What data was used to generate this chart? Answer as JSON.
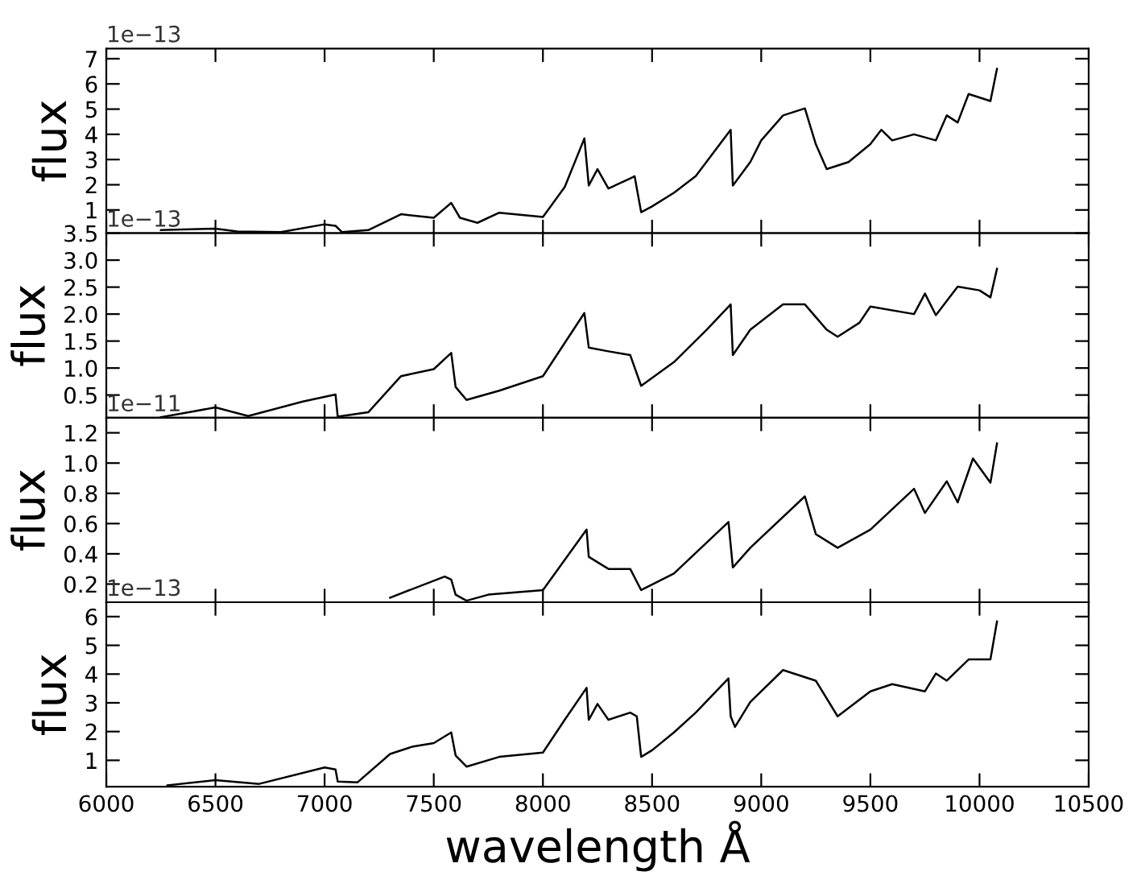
{
  "chart_data": [
    {
      "type": "line",
      "ylabel": "flux",
      "annotations": [
        "1e−13"
      ],
      "tick_labels": "y",
      "grid": false,
      "xlim": [
        6000,
        10500
      ],
      "xticks": [
        6000,
        6500,
        7000,
        7500,
        8000,
        8500,
        9000,
        9500,
        10000,
        10500
      ],
      "ylim": [
        0.08,
        7.4
      ],
      "yticks": [
        1,
        2,
        3,
        4,
        5,
        6,
        7
      ],
      "series": [
        {
          "color": "#000000",
          "x": [
            6250,
            6500,
            6600,
            6800,
            7000,
            7050,
            7080,
            7200,
            7350,
            7500,
            7580,
            7620,
            7700,
            7800,
            8000,
            8100,
            8190,
            8210,
            8250,
            8300,
            8400,
            8420,
            8450,
            8500,
            8600,
            8700,
            8860,
            8870,
            8950,
            9000,
            9100,
            9200,
            9250,
            9300,
            9400,
            9500,
            9550,
            9600,
            9700,
            9800,
            9850,
            9900,
            9950,
            10050,
            10080
          ],
          "values": [
            0.2,
            0.26,
            0.15,
            0.12,
            0.43,
            0.37,
            0.12,
            0.2,
            0.83,
            0.69,
            1.28,
            0.69,
            0.49,
            0.89,
            0.72,
            1.91,
            3.84,
            1.97,
            2.62,
            1.85,
            2.25,
            2.34,
            0.91,
            1.14,
            1.68,
            2.34,
            4.18,
            1.97,
            2.9,
            3.76,
            4.75,
            5.03,
            3.61,
            2.62,
            2.9,
            3.61,
            4.18,
            3.76,
            4.0,
            3.76,
            4.75,
            4.47,
            5.6,
            5.32,
            6.6
          ]
        }
      ]
    },
    {
      "type": "line",
      "ylabel": "flux",
      "annotations": [
        "1e−13"
      ],
      "tick_labels": "y",
      "grid": false,
      "xlim": [
        6000,
        10500
      ],
      "xticks": [
        6000,
        6500,
        7000,
        7500,
        8000,
        8500,
        9000,
        9500,
        10000,
        10500
      ],
      "ylim": [
        0.08,
        3.5
      ],
      "yticks": [
        0.5,
        {
          "value": 1,
          "label": "1.0"
        },
        1.5,
        {
          "value": 2,
          "label": "2.0"
        },
        2.5,
        {
          "value": 3,
          "label": "3.0"
        },
        3.5
      ],
      "series": [
        {
          "color": "#000000",
          "x": [
            6250,
            6500,
            6650,
            6900,
            7050,
            7060,
            7200,
            7350,
            7500,
            7580,
            7600,
            7650,
            7800,
            8000,
            8190,
            8210,
            8300,
            8400,
            8450,
            8600,
            8750,
            8860,
            8870,
            8950,
            9100,
            9200,
            9300,
            9350,
            9450,
            9500,
            9700,
            9750,
            9800,
            9900,
            10000,
            10050,
            10080
          ],
          "values": [
            0.09,
            0.27,
            0.11,
            0.38,
            0.51,
            0.1,
            0.18,
            0.85,
            0.98,
            1.28,
            0.65,
            0.41,
            0.58,
            0.85,
            2.02,
            1.38,
            1.31,
            1.24,
            0.67,
            1.11,
            1.71,
            2.18,
            1.24,
            1.71,
            2.18,
            2.18,
            1.71,
            1.58,
            1.84,
            2.14,
            2.0,
            2.38,
            1.98,
            2.51,
            2.44,
            2.31,
            2.84
          ]
        }
      ]
    },
    {
      "type": "line",
      "ylabel": "flux",
      "annotations": [
        "1e−11"
      ],
      "tick_labels": "y",
      "grid": false,
      "xlim": [
        6000,
        10500
      ],
      "xticks": [
        6000,
        6500,
        7000,
        7500,
        8000,
        8500,
        9000,
        9500,
        10000,
        10500
      ],
      "ylim": [
        0.08,
        1.3
      ],
      "yticks": [
        0.2,
        0.4,
        0.6,
        0.8,
        {
          "value": 1,
          "label": "1.0"
        },
        1.2
      ],
      "series": [
        {
          "color": "#000000",
          "x": [
            7300,
            7550,
            7580,
            7600,
            7650,
            7750,
            8000,
            8200,
            8210,
            8300,
            8400,
            8450,
            8600,
            8850,
            8870,
            8950,
            9200,
            9250,
            9350,
            9500,
            9700,
            9750,
            9850,
            9900,
            9970,
            10050,
            10080
          ],
          "values": [
            0.11,
            0.25,
            0.23,
            0.13,
            0.09,
            0.13,
            0.16,
            0.56,
            0.38,
            0.3,
            0.3,
            0.16,
            0.27,
            0.61,
            0.31,
            0.44,
            0.78,
            0.53,
            0.44,
            0.56,
            0.83,
            0.67,
            0.88,
            0.74,
            1.03,
            0.87,
            1.13
          ]
        }
      ]
    },
    {
      "type": "line",
      "ylabel": "flux",
      "xlabel": "wavelength Å",
      "annotations": [
        "1e−13"
      ],
      "grid": false,
      "xlim": [
        6000,
        10500
      ],
      "xticks": [
        6000,
        6500,
        7000,
        7500,
        8000,
        8500,
        9000,
        9500,
        10000,
        10500
      ],
      "ylim": [
        0.08,
        6.5
      ],
      "yticks": [
        1,
        2,
        3,
        4,
        5,
        6
      ],
      "series": [
        {
          "color": "#000000",
          "x": [
            6280,
            6500,
            6700,
            7000,
            7050,
            7060,
            7150,
            7300,
            7400,
            7500,
            7580,
            7600,
            7650,
            7800,
            8000,
            8100,
            8200,
            8210,
            8250,
            8300,
            8400,
            8430,
            8450,
            8500,
            8600,
            8700,
            8850,
            8860,
            8880,
            8950,
            9100,
            9250,
            9350,
            9500,
            9600,
            9750,
            9800,
            9850,
            9950,
            10050,
            10080
          ],
          "values": [
            0.13,
            0.31,
            0.18,
            0.75,
            0.68,
            0.26,
            0.23,
            1.22,
            1.47,
            1.6,
            1.97,
            1.17,
            0.78,
            1.12,
            1.27,
            2.41,
            3.52,
            2.41,
            2.96,
            2.41,
            2.66,
            2.53,
            1.12,
            1.35,
            1.97,
            2.66,
            3.85,
            2.53,
            2.16,
            3.03,
            4.14,
            3.77,
            2.53,
            3.4,
            3.65,
            3.4,
            4.02,
            3.77,
            4.51,
            4.51,
            5.83
          ]
        }
      ]
    }
  ]
}
